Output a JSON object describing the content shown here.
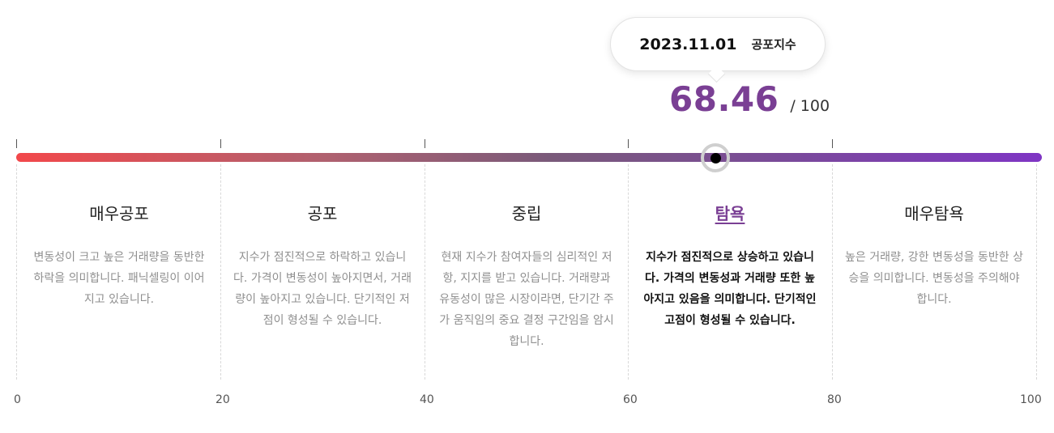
{
  "tooltip": {
    "date": "2023.11.01",
    "label": "공포지수"
  },
  "score": {
    "value": "68.46",
    "max": "/ 100",
    "value_numeric": 68.46,
    "color": "#7a3f94"
  },
  "gauge": {
    "gradient_start": "#f2484b",
    "gradient_end": "#7f35c4",
    "handle_color": "#000000"
  },
  "segments": [
    {
      "title": "매우공포",
      "desc": "변동성이 크고 높은 거래량을 동반한 하락을 의미합니다. 패닉셀링이 이어지고 있습니다."
    },
    {
      "title": "공포",
      "desc": "지수가 점진적으로 하락하고 있습니다. 가격이 변동성이 높아지면서, 거래량이 높아지고 있습니다. 단기적인 저점이 형성될 수 있습니다."
    },
    {
      "title": "중립",
      "desc": "현재 지수가 참여자들의 심리적인 저항, 지지를 받고 있습니다. 거래량과 유동성이 많은 시장이라면, 단기간 주가 움직임의 중요 결정 구간임을 암시합니다."
    },
    {
      "title": "탐욕",
      "desc": "지수가 점진적으로 상승하고 있습니다. 가격의 변동성과 거래량 또한 높아지고 있음을 의미합니다. 단기적인 고점이 형성될 수 있습니다.",
      "active": true
    },
    {
      "title": "매우탐욕",
      "desc": "높은 거래량, 강한 변동성을 동반한 상승을 의미합니다. 변동성을 주의해야 합니다."
    }
  ],
  "axis": [
    "0",
    "20",
    "40",
    "60",
    "80",
    "100"
  ]
}
